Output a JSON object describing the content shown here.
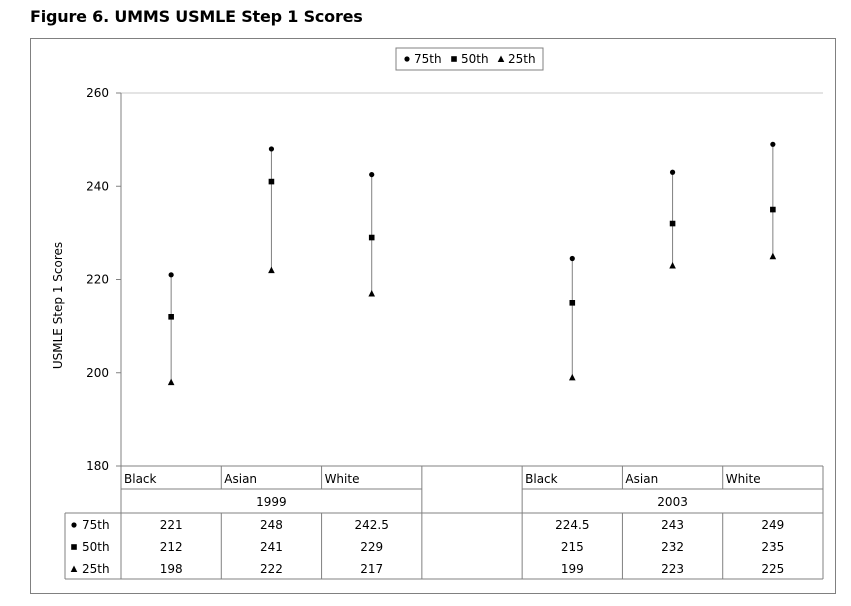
{
  "figure": {
    "title": "Figure 6. UMMS USMLE Step 1 Scores"
  },
  "chart_data": {
    "type": "scatter",
    "ylabel": "USMLE Step 1 Scores",
    "ylim": [
      180,
      260
    ],
    "yticks": [
      180,
      200,
      220,
      240,
      260
    ],
    "legend": {
      "placement": "top-center",
      "entries": [
        {
          "name": "75th",
          "marker": "circle"
        },
        {
          "name": "50th",
          "marker": "square"
        },
        {
          "name": "25th",
          "marker": "triangle"
        }
      ]
    },
    "categories": [
      "Black",
      "Asian",
      "White",
      "",
      "Black",
      "Asian",
      "White"
    ],
    "groups": [
      {
        "label": "1999",
        "start": 0,
        "end": 3
      },
      {
        "label": "2003",
        "start": 4,
        "end": 6
      }
    ],
    "series": [
      {
        "name": "75th",
        "marker": "circle",
        "values": [
          221,
          248,
          242.5,
          null,
          224.5,
          243,
          249
        ]
      },
      {
        "name": "50th",
        "marker": "square",
        "values": [
          212,
          241,
          229,
          null,
          215,
          232,
          235
        ]
      },
      {
        "name": "25th",
        "marker": "triangle",
        "values": [
          198,
          222,
          217,
          null,
          199,
          223,
          225
        ]
      }
    ],
    "table_rows": [
      {
        "label": "75th",
        "values": [
          "221",
          "248",
          "242.5",
          "",
          "224.5",
          "243",
          "249"
        ]
      },
      {
        "label": "50th",
        "values": [
          "212",
          "241",
          "229",
          "",
          "215",
          "232",
          "235"
        ]
      },
      {
        "label": "25th",
        "values": [
          "198",
          "222",
          "217",
          "",
          "199",
          "223",
          "225"
        ]
      }
    ]
  }
}
